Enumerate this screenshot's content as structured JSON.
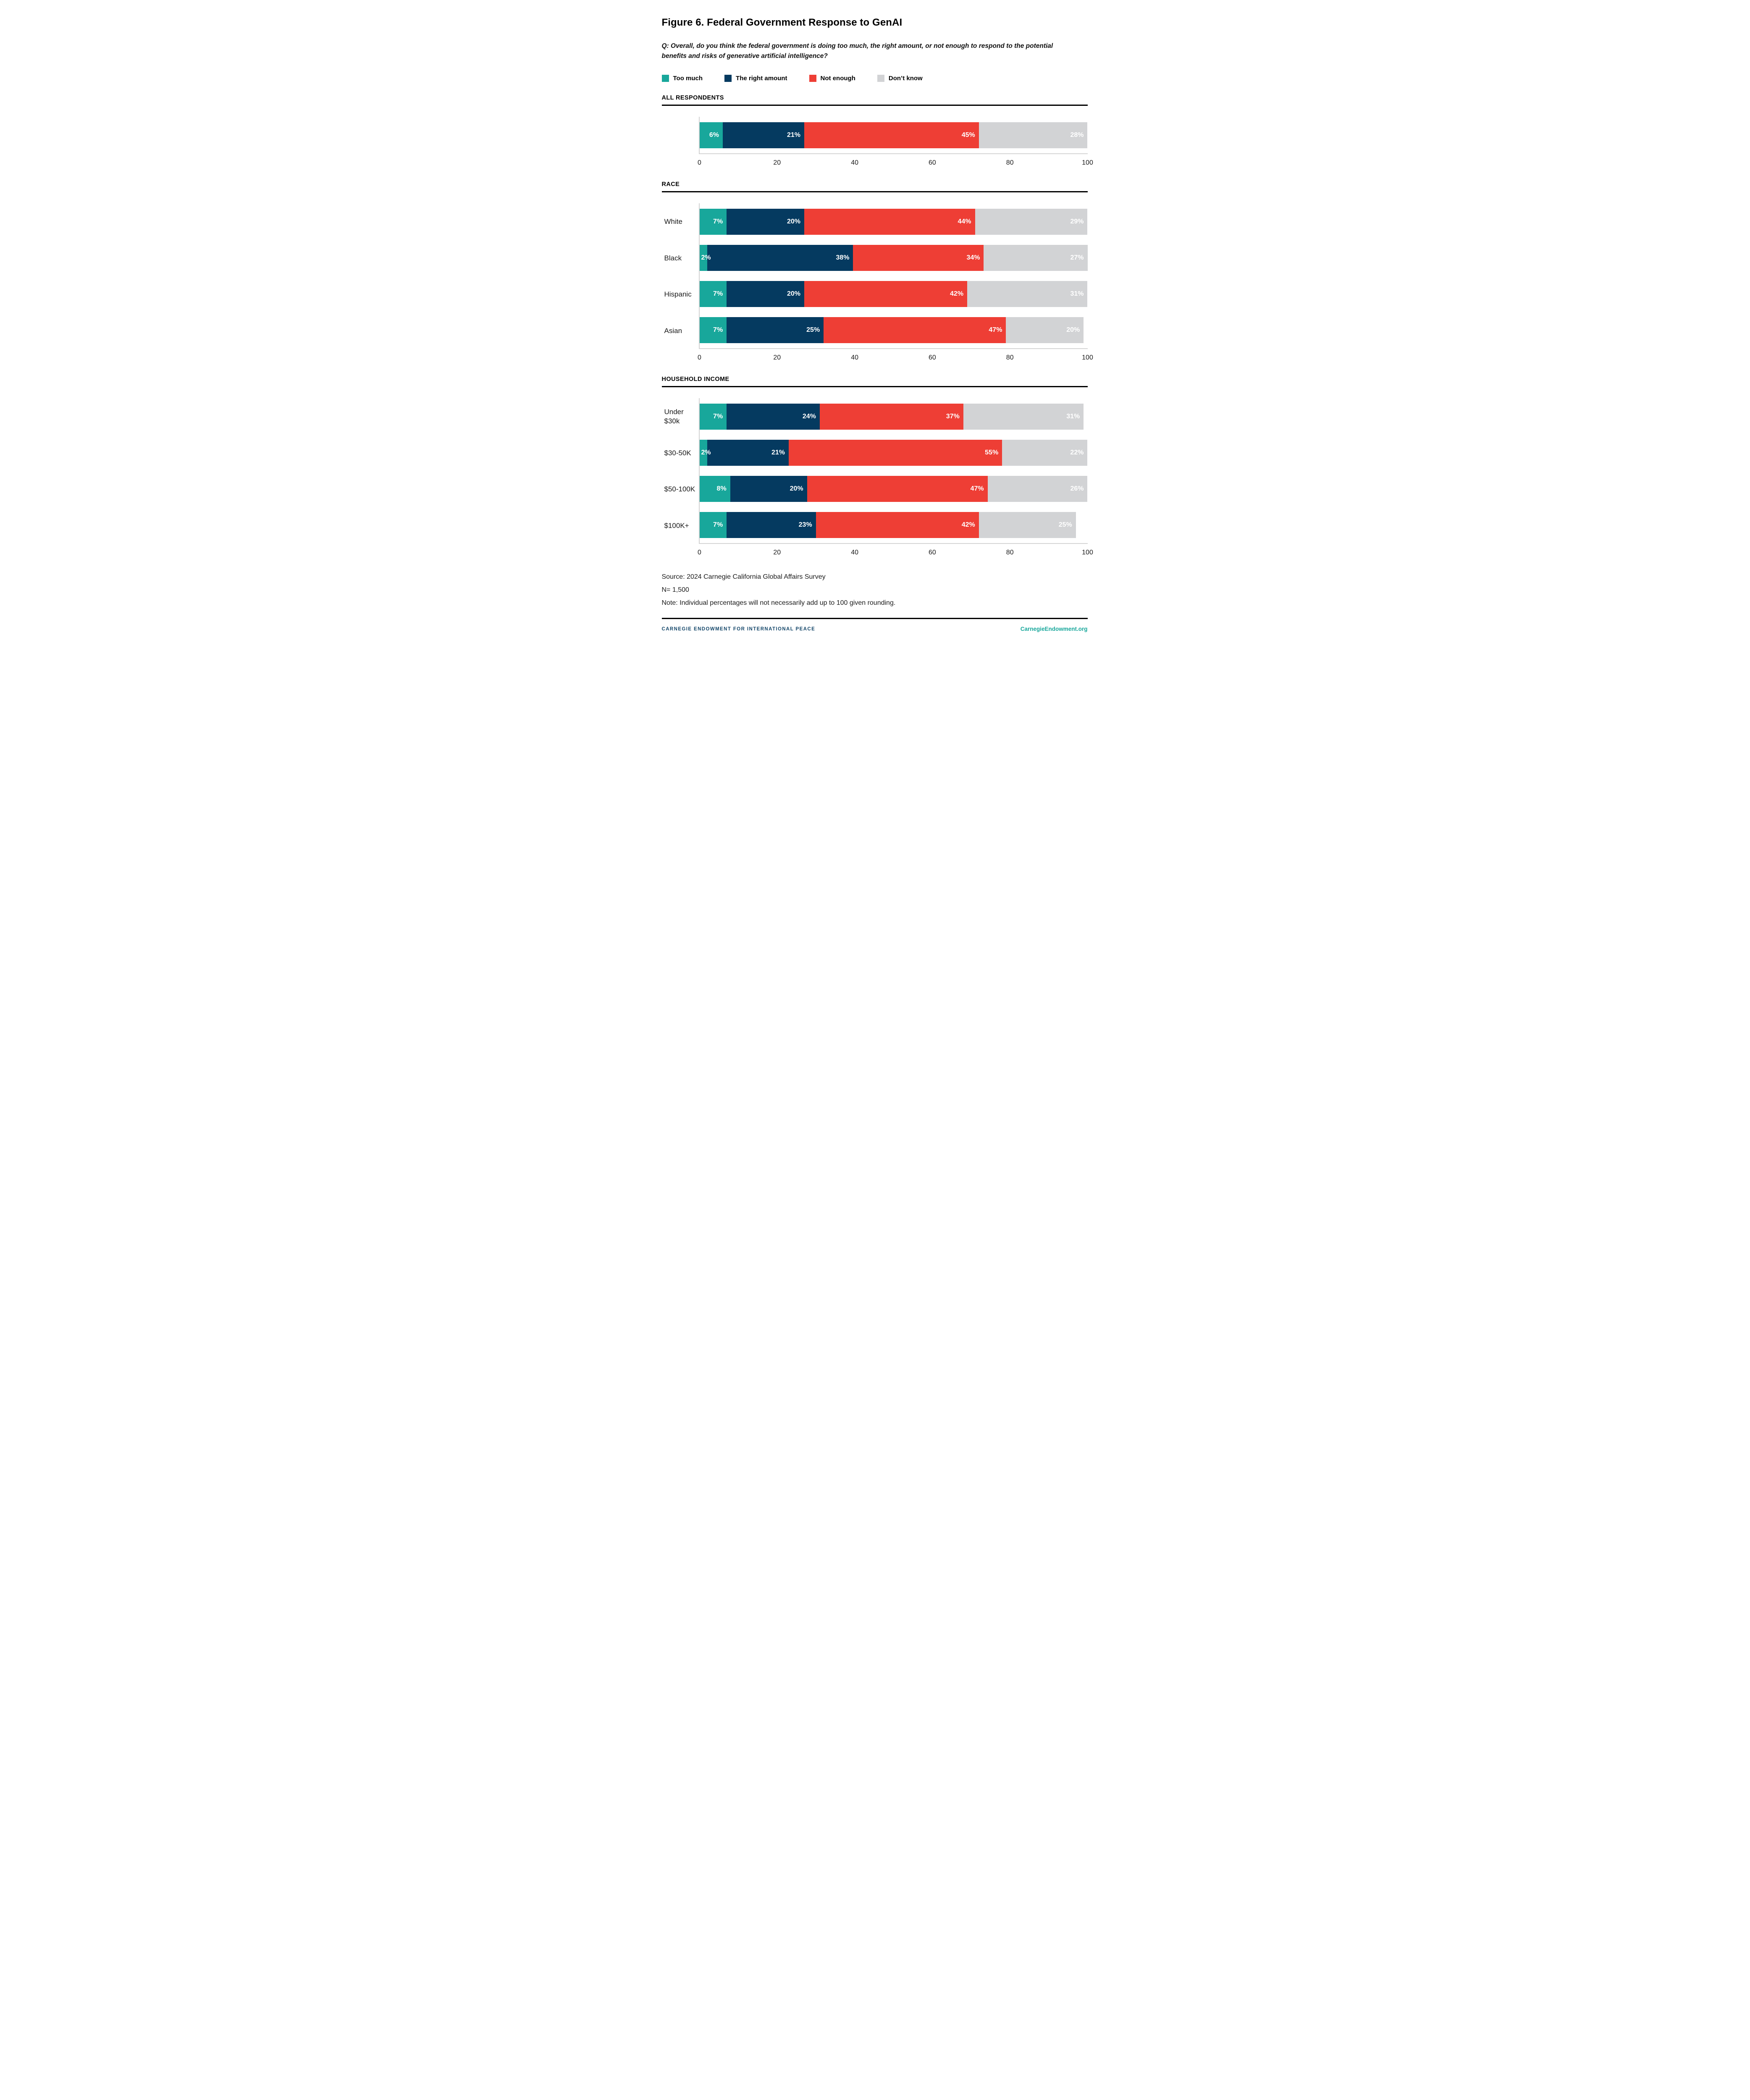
{
  "title": "Figure 6. Federal Government Response to GenAI",
  "question": "Q: Overall, do you think the federal government is doing too much, the right amount, or not enough to respond to the potential benefits and risks of generative artificial intelligence?",
  "colors": {
    "too_much": "#18A79B",
    "right_amount": "#053A60",
    "not_enough": "#EE3E35",
    "dont_know": "#D2D3D5"
  },
  "legend": [
    {
      "label": "Too much"
    },
    {
      "label": "The right amount"
    },
    {
      "label": "Not enough"
    },
    {
      "label": "Don’t know"
    }
  ],
  "chart_data": {
    "type": "bar",
    "orientation": "horizontal",
    "stacked": true,
    "unit": "%",
    "series": [
      "Too much",
      "The right amount",
      "Not enough",
      "Don’t know"
    ],
    "xlim": [
      0,
      100
    ],
    "axis_ticks": [
      0,
      20,
      40,
      60,
      80,
      100
    ],
    "grid": false,
    "legend_position": "top",
    "sections": [
      {
        "header": "ALL RESPONDENTS",
        "rows": [
          {
            "label": "",
            "segments": [
              {
                "series": "Too much",
                "value": 6,
                "display": "6%"
              },
              {
                "series": "The right amount",
                "value": 21,
                "display": "21%"
              },
              {
                "series": "Not enough",
                "value": 45,
                "display": "45%"
              },
              {
                "series": "Don’t know",
                "value": 28,
                "display": "28%"
              }
            ]
          }
        ]
      },
      {
        "header": "RACE",
        "rows": [
          {
            "label": "White",
            "segments": [
              {
                "series": "Too much",
                "value": 7,
                "display": "7%"
              },
              {
                "series": "The right amount",
                "value": 20,
                "display": "20%"
              },
              {
                "series": "Not enough",
                "value": 44,
                "display": "44%"
              },
              {
                "series": "Don’t know",
                "value": 29,
                "display": "29%"
              }
            ]
          },
          {
            "label": "Black",
            "segments": [
              {
                "series": "Too much",
                "value": 2,
                "display": "2%"
              },
              {
                "series": "The right amount",
                "value": 38,
                "display": "38%"
              },
              {
                "series": "Not enough",
                "value": 34,
                "display": "34%"
              },
              {
                "series": "Don’t know",
                "value": 27,
                "display": "27%"
              }
            ]
          },
          {
            "label": "Hispanic",
            "segments": [
              {
                "series": "Too much",
                "value": 7,
                "display": "7%"
              },
              {
                "series": "The right amount",
                "value": 20,
                "display": "20%"
              },
              {
                "series": "Not enough",
                "value": 42,
                "display": "42%"
              },
              {
                "series": "Don’t know",
                "value": 31,
                "display": "31%"
              }
            ]
          },
          {
            "label": "Asian",
            "segments": [
              {
                "series": "Too much",
                "value": 7,
                "display": "7%"
              },
              {
                "series": "The right amount",
                "value": 25,
                "display": "25%"
              },
              {
                "series": "Not enough",
                "value": 47,
                "display": "47%"
              },
              {
                "series": "Don’t know",
                "value": 20,
                "display": "20%"
              }
            ]
          }
        ]
      },
      {
        "header": "HOUSEHOLD INCOME",
        "rows": [
          {
            "label": "Under $30k",
            "segments": [
              {
                "series": "Too much",
                "value": 7,
                "display": "7%"
              },
              {
                "series": "The right amount",
                "value": 24,
                "display": "24%"
              },
              {
                "series": "Not enough",
                "value": 37,
                "display": "37%"
              },
              {
                "series": "Don’t know",
                "value": 31,
                "display": "31%"
              }
            ]
          },
          {
            "label": "$30-50K",
            "segments": [
              {
                "series": "Too much",
                "value": 2,
                "display": "2%"
              },
              {
                "series": "The right amount",
                "value": 21,
                "display": "21%"
              },
              {
                "series": "Not enough",
                "value": 55,
                "display": "55%"
              },
              {
                "series": "Don’t know",
                "value": 22,
                "display": "22%"
              }
            ]
          },
          {
            "label": "$50-100K",
            "segments": [
              {
                "series": "Too much",
                "value": 8,
                "display": "8%"
              },
              {
                "series": "The right amount",
                "value": 20,
                "display": "20%"
              },
              {
                "series": "Not enough",
                "value": 47,
                "display": "47%"
              },
              {
                "series": "Don’t know",
                "value": 26,
                "display": "26%"
              }
            ]
          },
          {
            "label": "$100K+",
            "segments": [
              {
                "series": "Too much",
                "value": 7,
                "display": "7%"
              },
              {
                "series": "The right amount",
                "value": 23,
                "display": "23%"
              },
              {
                "series": "Not enough",
                "value": 42,
                "display": "42%"
              },
              {
                "series": "Don’t know",
                "value": 25,
                "display": "25%"
              }
            ]
          }
        ]
      }
    ]
  },
  "footer": {
    "source": "Source: 2024 Carnegie California Global Affairs Survey",
    "sample": "N= 1,500",
    "note": "Note: Individual percentages will not necessarily add up to 100 given rounding.",
    "org": "CARNEGIE ENDOWMENT FOR INTERNATIONAL PEACE",
    "site": "CarnegieEndowment.org"
  }
}
